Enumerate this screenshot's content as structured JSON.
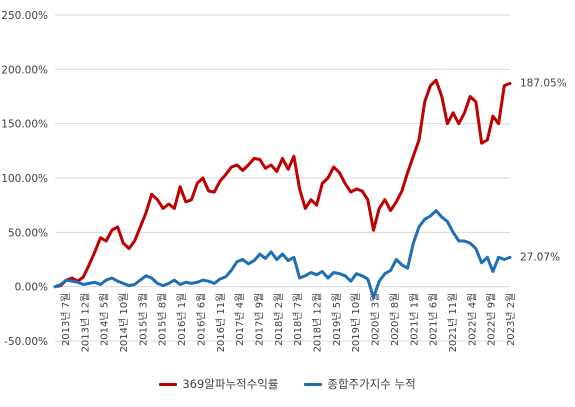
{
  "chart_data": {
    "type": "line",
    "x_ticks": [
      "2013년 7월",
      "2013년 12월",
      "2014년 5월",
      "2014년 10월",
      "2015년 3월",
      "2015년 8월",
      "2016년 1월",
      "2016년 6월",
      "2016년 11월",
      "2017년 4월",
      "2017년 9월",
      "2018년 2월",
      "2018년 7월",
      "2018년 12월",
      "2019년 5월",
      "2019년 10월",
      "2020년 3월",
      "2020년 8월",
      "2021년 1월",
      "2021년 6월",
      "2021년 11월",
      "2022년 4월",
      "2022년 9월",
      "2023년 2월"
    ],
    "ylim": [
      -50,
      250
    ],
    "y_ticks": [
      "-50.00%",
      "0.00%",
      "50.00%",
      "100.00%",
      "150.00%",
      "200.00%",
      "250.00%"
    ],
    "y_tick_values": [
      -50,
      0,
      50,
      100,
      150,
      200,
      250
    ],
    "grid": true,
    "legend_position": "bottom",
    "end_labels": [
      "187.05%",
      "27.07%"
    ],
    "series": [
      {
        "name": "369알파누적수익률",
        "color": "#C00000",
        "values": [
          0,
          1,
          6,
          8,
          5,
          9,
          20,
          32,
          45,
          42,
          52,
          55,
          40,
          35,
          42,
          55,
          68,
          85,
          80,
          72,
          76,
          72,
          92,
          78,
          80,
          95,
          100,
          88,
          87,
          97,
          103,
          110,
          112,
          107,
          112,
          118,
          117,
          109,
          112,
          106,
          118,
          108,
          120,
          90,
          72,
          80,
          75,
          95,
          100,
          110,
          105,
          95,
          87,
          90,
          88,
          80,
          52,
          72,
          80,
          70,
          78,
          88,
          105,
          120,
          135,
          170,
          185,
          190,
          175,
          150,
          160,
          150,
          160,
          175,
          170,
          132,
          135,
          157,
          150,
          185,
          187.05
        ]
      },
      {
        "name": "종합주가지수 누적",
        "color": "#1F6FB4",
        "values": [
          0,
          2,
          6,
          5,
          4,
          2,
          3,
          4,
          2,
          6,
          8,
          5,
          3,
          1,
          2,
          6,
          10,
          8,
          3,
          1,
          3,
          6,
          2,
          4,
          3,
          4,
          6,
          5,
          3,
          7,
          9,
          15,
          23,
          25,
          21,
          24,
          30,
          26,
          32,
          25,
          30,
          24,
          27,
          8,
          10,
          13,
          11,
          14,
          8,
          13,
          12,
          10,
          5,
          12,
          10,
          7,
          -10,
          5,
          12,
          15,
          25,
          20,
          17,
          40,
          55,
          62,
          65,
          70,
          64,
          60,
          50,
          42,
          42,
          40,
          35,
          22,
          27,
          14,
          27,
          25,
          27.07
        ]
      }
    ]
  }
}
